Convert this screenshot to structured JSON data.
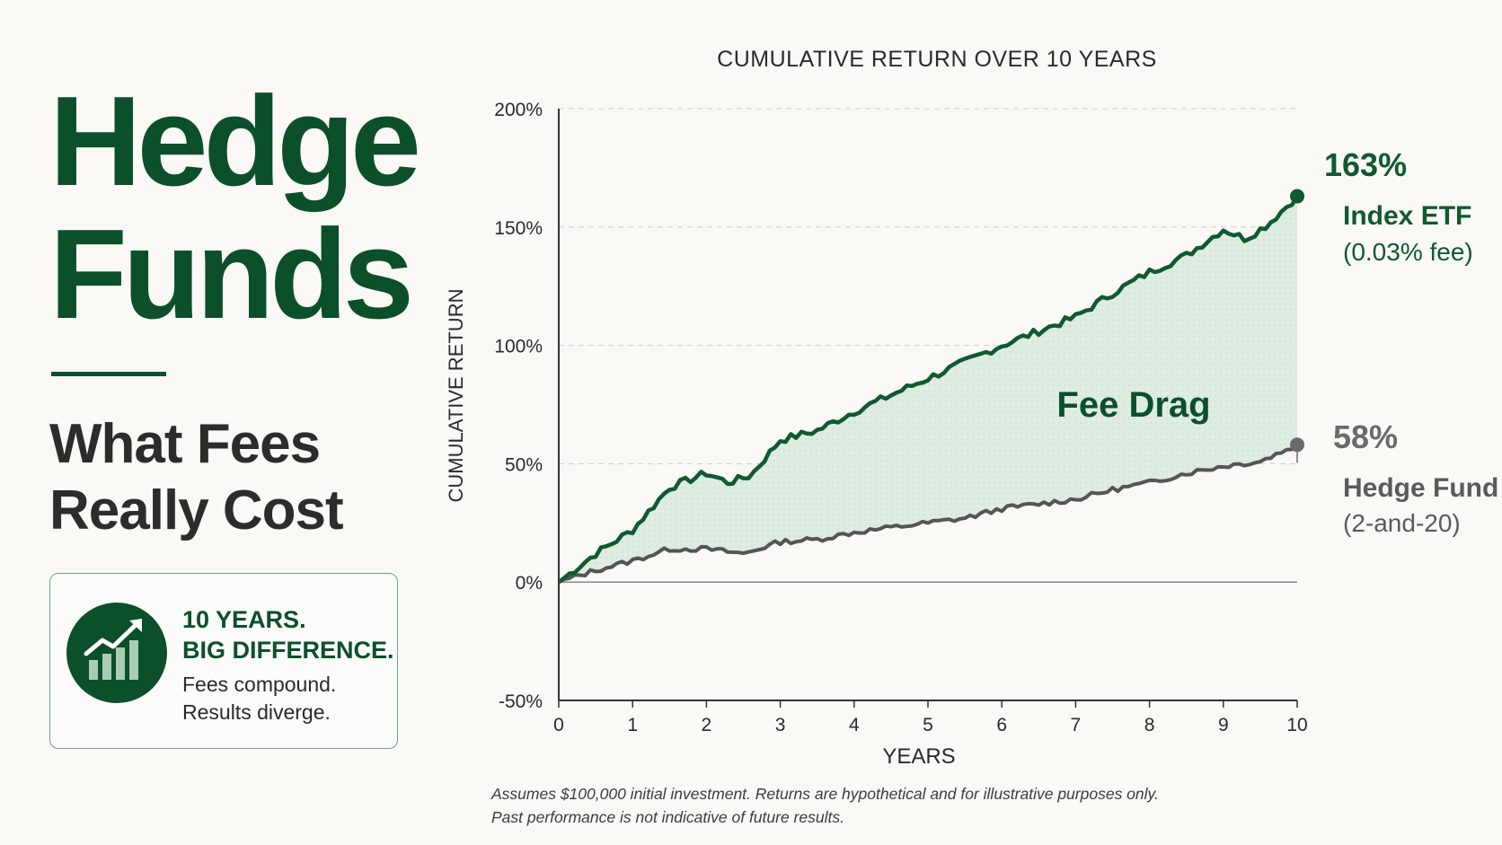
{
  "headline": {
    "line1": "Hedge",
    "line2": "Funds"
  },
  "subhead": {
    "line1": "What Fees",
    "line2": "Really Cost"
  },
  "callout": {
    "icon": "bar-chart-growth-icon",
    "title_line1": "10 YEARS.",
    "title_line2": "BIG DIFFERENCE.",
    "body_line1": "Fees compound.",
    "body_line2": "Results diverge."
  },
  "footnote": {
    "line1": "Assumes $100,000 initial investment. Returns are hypothetical and for illustrative purposes only.",
    "line2": "Past performance is not indicative of future results."
  },
  "colors": {
    "brand_green": "#0c4f2b",
    "etf_line": "#0f5a2e",
    "hedge_line": "#555555",
    "fill": "#dcebe0",
    "text_dark": "#2c2c2c"
  },
  "chart_data": {
    "type": "line",
    "title": "CUMULATIVE RETURN OVER 10 YEARS",
    "xlabel": "YEARS",
    "ylabel": "CUMULATIVE RETURN",
    "xlim": [
      0,
      10
    ],
    "ylim": [
      -50,
      200
    ],
    "xticks": [
      0,
      1,
      2,
      3,
      4,
      5,
      6,
      7,
      8,
      9,
      10
    ],
    "yticks": [
      -50,
      0,
      50,
      100,
      150,
      200
    ],
    "ytick_labels": [
      "-50%",
      "0%",
      "50%",
      "100%",
      "150%",
      "200%"
    ],
    "grid": "horizontal dashed",
    "fill_between": "Fee Drag",
    "series": [
      {
        "name": "Index ETF",
        "name_sub": "(0.03% fee)",
        "end_label": "163%",
        "color": "#0f5a2e",
        "x": [
          0,
          0.5,
          1.0,
          1.5,
          2.0,
          2.3,
          2.6,
          3.0,
          3.5,
          4.0,
          4.5,
          5.0,
          5.5,
          6.0,
          6.5,
          7.0,
          7.5,
          8.0,
          8.5,
          9.0,
          9.3,
          9.6,
          10.0
        ],
        "values": [
          0,
          12,
          22,
          40,
          46,
          42,
          45,
          60,
          64,
          72,
          79,
          86,
          93,
          100,
          106,
          112,
          122,
          131,
          138,
          149,
          145,
          151,
          163
        ]
      },
      {
        "name": "Hedge Fund",
        "name_sub": "(2-and-20)",
        "end_label": "58%",
        "color": "#555555",
        "x": [
          0,
          0.5,
          1.0,
          1.5,
          2.0,
          2.5,
          3.0,
          3.5,
          4.0,
          4.5,
          5.0,
          5.5,
          6.0,
          6.5,
          7.0,
          7.5,
          8.0,
          8.5,
          9.0,
          9.5,
          10.0
        ],
        "values": [
          0,
          5,
          9,
          14,
          14,
          12,
          17,
          18,
          21,
          23,
          25,
          27,
          31,
          33,
          35,
          39,
          42,
          46,
          49,
          51,
          58
        ]
      }
    ]
  }
}
